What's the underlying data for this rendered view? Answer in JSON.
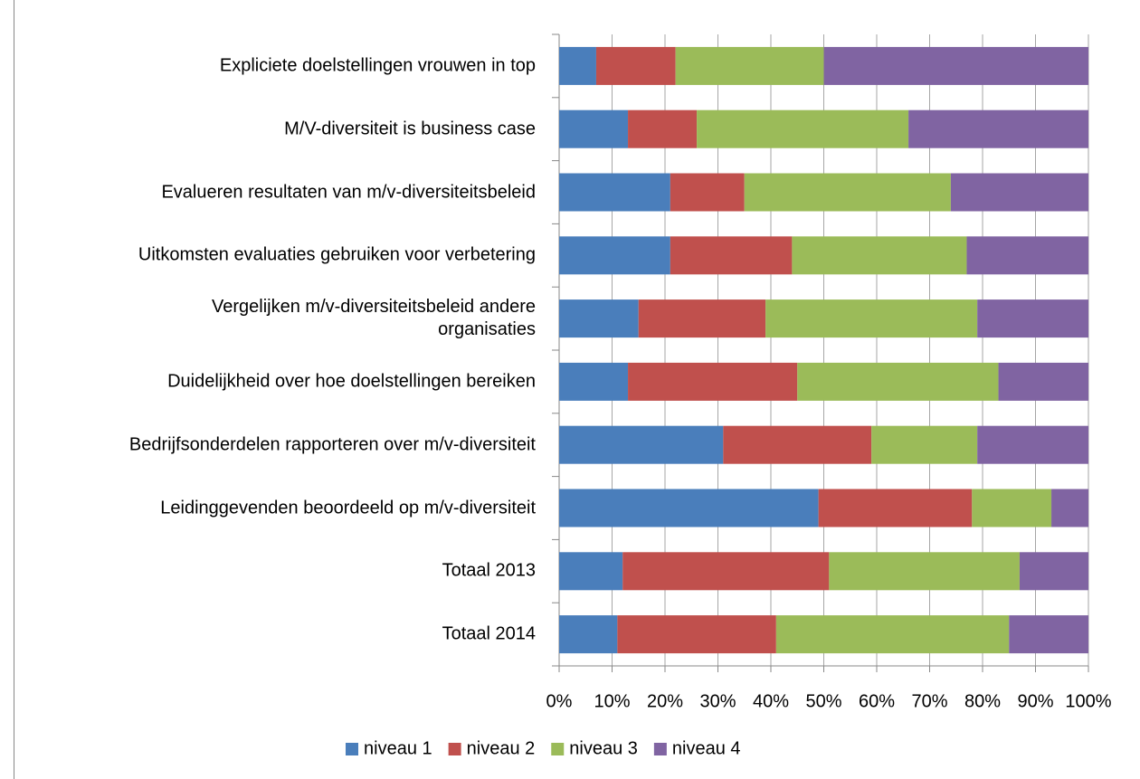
{
  "chart_data": {
    "type": "stacked_barh",
    "categories": [
      "Expliciete doelstellingen vrouwen in top",
      "M/V-diversiteit is business case",
      "Evalueren resultaten van m/v-diversiteitsbeleid",
      "Uitkomsten evaluaties gebruiken voor verbetering",
      "Vergelijken m/v-diversiteitsbeleid andere\norganisaties",
      "Duidelijkheid over hoe doelstellingen bereiken",
      "Bedrijfsonderdelen rapporteren over m/v-diversiteit",
      "Leidinggevenden beoordeeld op m/v-diversiteit",
      "Totaal 2013",
      "Totaal 2014"
    ],
    "series": [
      {
        "name": "niveau 1",
        "color": "#4a7ebb",
        "values": [
          7,
          13,
          21,
          21,
          15,
          13,
          31,
          49,
          12,
          11
        ]
      },
      {
        "name": "niveau 2",
        "color": "#c0504d",
        "values": [
          15,
          13,
          14,
          23,
          24,
          32,
          28,
          29,
          39,
          30
        ]
      },
      {
        "name": "niveau 3",
        "color": "#9bbb59",
        "values": [
          28,
          40,
          39,
          33,
          40,
          38,
          20,
          15,
          36,
          44
        ]
      },
      {
        "name": "niveau 4",
        "color": "#8064a2",
        "values": [
          50,
          34,
          26,
          23,
          21,
          17,
          21,
          7,
          13,
          15
        ]
      }
    ],
    "xlim": [
      0,
      100
    ],
    "xticks": [
      {
        "value": 0,
        "label": "0%"
      },
      {
        "value": 10,
        "label": "10%"
      },
      {
        "value": 20,
        "label": "20%"
      },
      {
        "value": 30,
        "label": "30%"
      },
      {
        "value": 40,
        "label": "40%"
      },
      {
        "value": 50,
        "label": "50%"
      },
      {
        "value": 60,
        "label": "60%"
      },
      {
        "value": 70,
        "label": "70%"
      },
      {
        "value": 80,
        "label": "80%"
      },
      {
        "value": 90,
        "label": "90%"
      },
      {
        "value": 100,
        "label": "100%"
      }
    ],
    "grid": true,
    "legend": "bottom"
  }
}
